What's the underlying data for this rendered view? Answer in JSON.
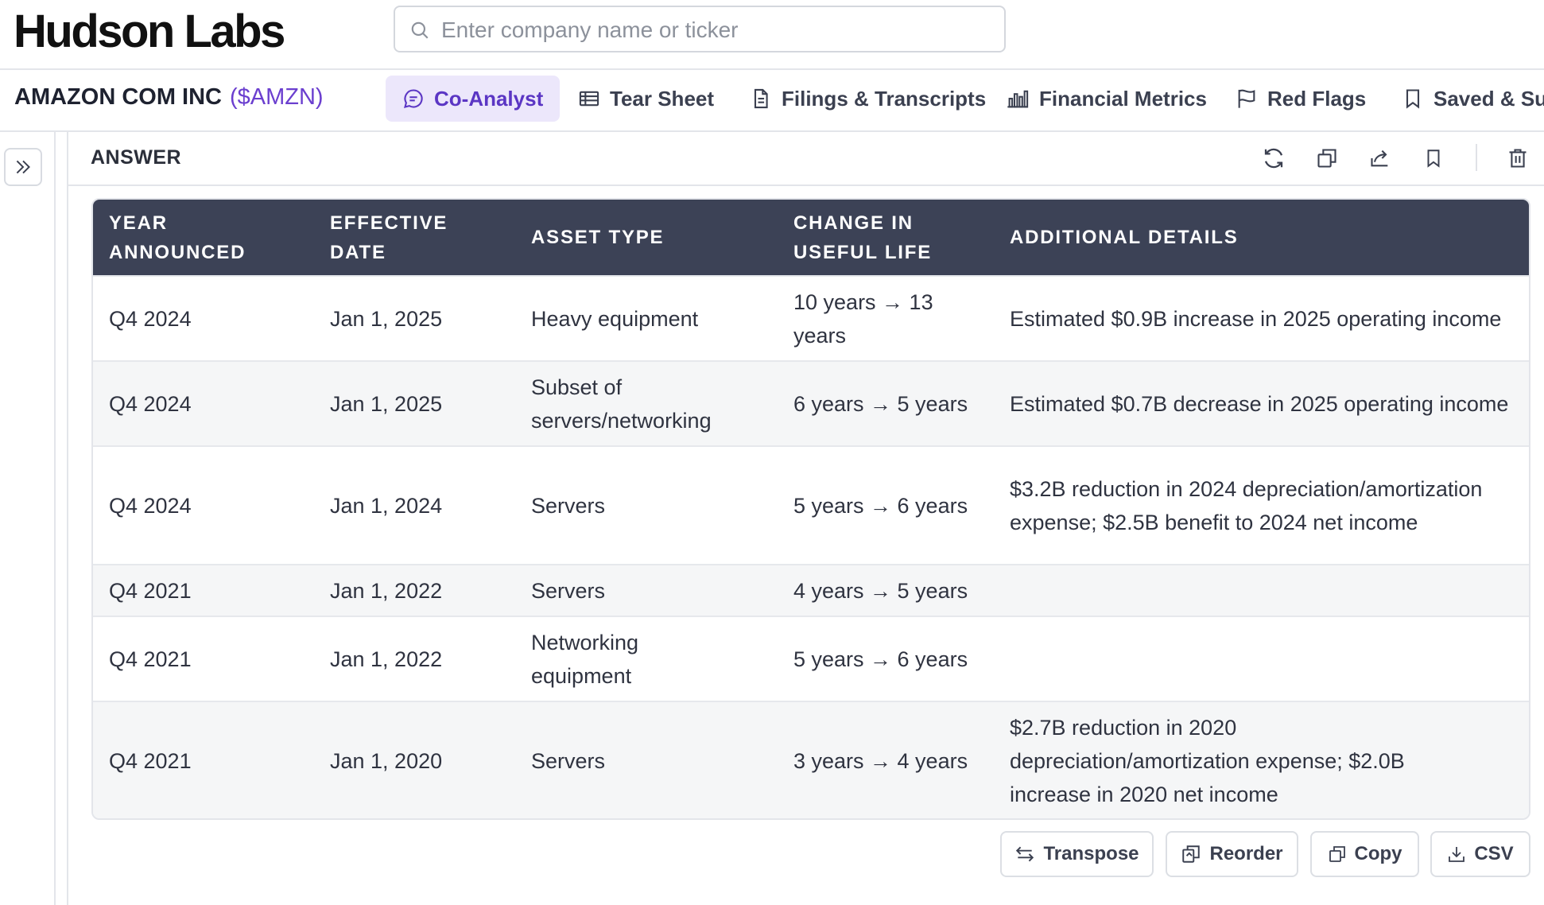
{
  "brand": "Hudson Labs",
  "search": {
    "placeholder": "Enter company name or ticker",
    "value": ""
  },
  "company": {
    "name": "AMAZON COM INC",
    "ticker": "($AMZN)"
  },
  "tabs": [
    {
      "label": "Co-Analyst",
      "icon": "chat-bubble-icon",
      "active": true
    },
    {
      "label": "Tear Sheet",
      "icon": "table-icon",
      "active": false
    },
    {
      "label": "Filings & Transcripts",
      "icon": "document-icon",
      "active": false
    },
    {
      "label": "Financial Metrics",
      "icon": "bar-chart-icon",
      "active": false
    },
    {
      "label": "Red Flags",
      "icon": "flag-icon",
      "active": false
    },
    {
      "label": "Saved & Sug",
      "icon": "bookmark-icon",
      "active": false
    }
  ],
  "answer": {
    "title": "ANSWER",
    "header_actions": [
      "refresh-icon",
      "copy-icon",
      "share-icon",
      "bookmark-icon",
      "trash-icon"
    ]
  },
  "table": {
    "columns": [
      [
        "YEAR",
        "ANNOUNCED"
      ],
      [
        "EFFECTIVE",
        "DATE"
      ],
      [
        "ASSET TYPE"
      ],
      [
        "CHANGE IN",
        "USEFUL LIFE"
      ],
      [
        "ADDITIONAL DETAILS"
      ]
    ],
    "rows": [
      [
        "Q4 2024",
        "Jan 1, 2025",
        "Heavy equipment",
        "10 years → 13 years",
        "Estimated $0.9B increase in 2025 operating income"
      ],
      [
        "Q4 2024",
        "Jan 1, 2025",
        "Subset of servers/networking",
        "6 years → 5 years",
        "Estimated $0.7B decrease in 2025 operating income"
      ],
      [
        "Q4 2024",
        "Jan 1, 2024",
        "Servers",
        "5 years → 6 years",
        "$3.2B reduction in 2024 depreciation/amortization expense; $2.5B benefit to 2024 net income"
      ],
      [
        "Q4 2021",
        "Jan 1, 2022",
        "Servers",
        "4 years → 5 years",
        ""
      ],
      [
        "Q4 2021",
        "Jan 1, 2022",
        "Networking equipment",
        "5 years → 6 years",
        ""
      ],
      [
        "Q4 2021",
        "Jan 1, 2020",
        "Servers",
        "3 years → 4 years",
        "$2.7B reduction in 2020 depreciation/amortization expense; $2.0B increase in 2020 net income"
      ]
    ]
  },
  "actions": {
    "transpose": "Transpose",
    "reorder": "Reorder",
    "copy": "Copy",
    "csv": "CSV"
  },
  "colors": {
    "header_bg": "#3c4256",
    "accent": "#5b36c4",
    "active_tab_bg": "#ece7fb"
  }
}
